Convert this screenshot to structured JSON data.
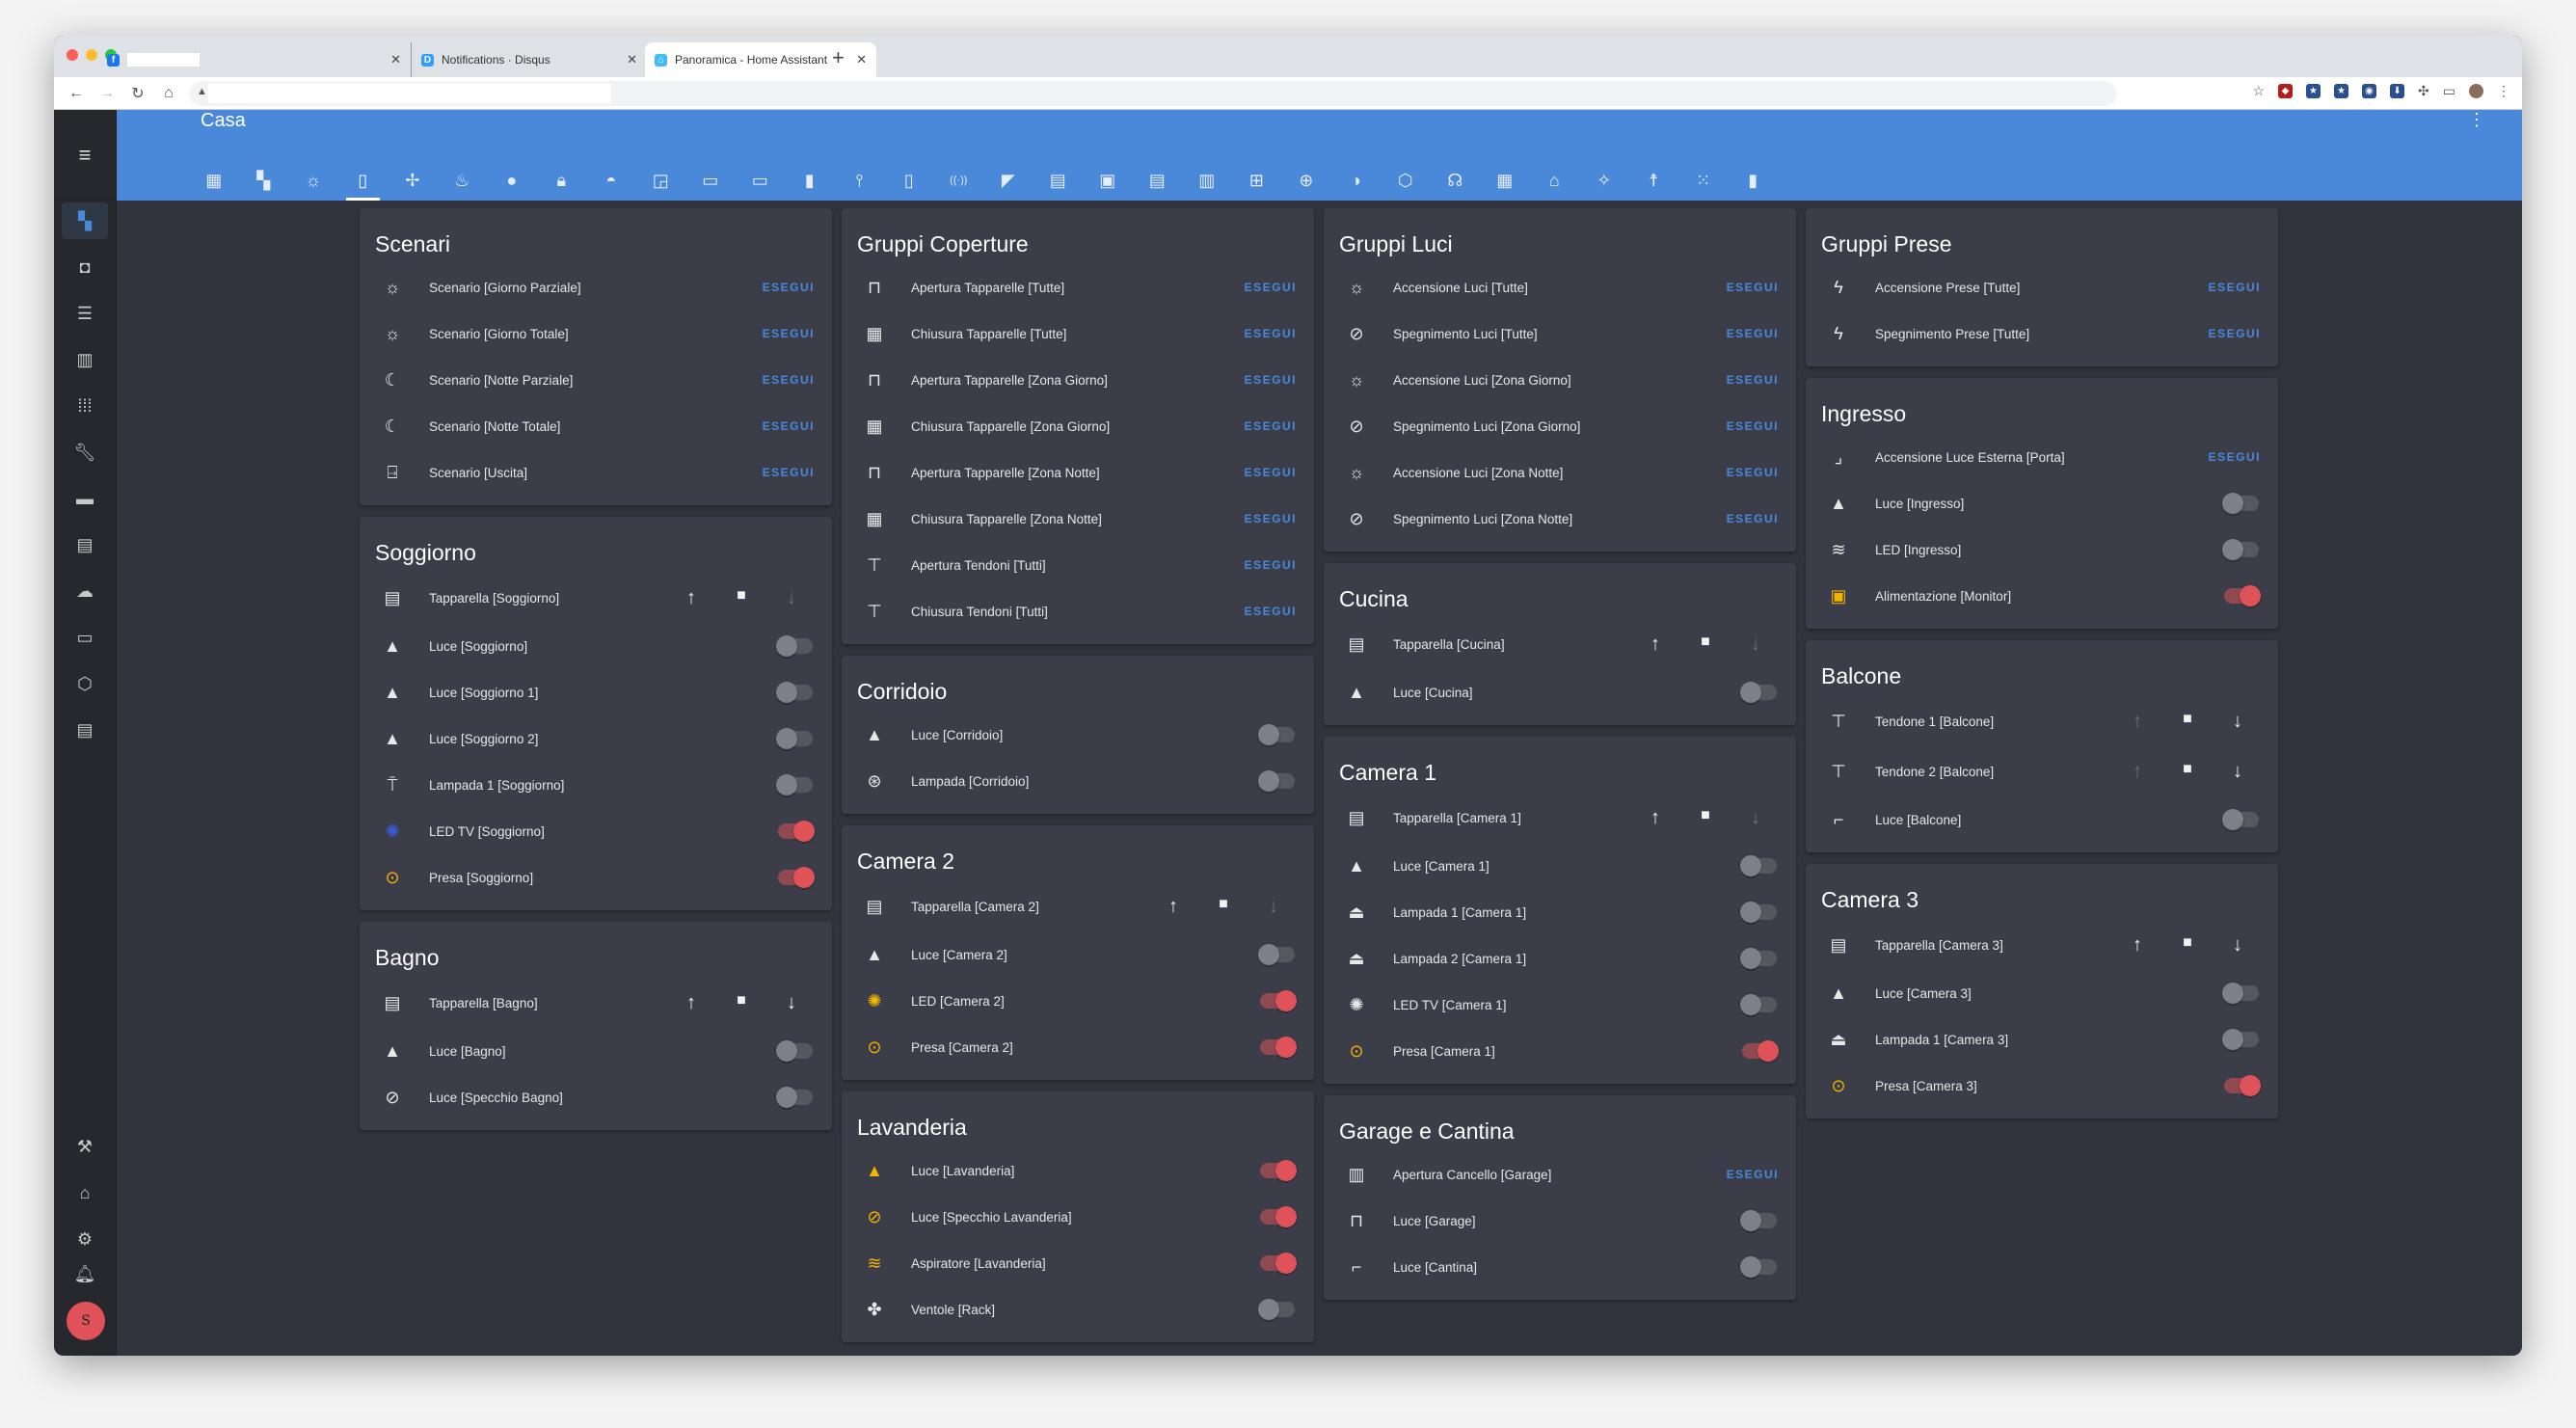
{
  "browser": {
    "tabs": [
      {
        "title": "",
        "favicon": "facebook-icon"
      },
      {
        "title": "Notifications · Disqus",
        "favicon": "disqus-icon"
      },
      {
        "title": "Panoramica - Home Assistant",
        "favicon": "home-assistant-icon",
        "active": true
      }
    ]
  },
  "app": {
    "title": "Casa",
    "view_tabs": [
      "floor-plan",
      "view-dashboard",
      "lightbulb",
      "door",
      "fan-ac",
      "radiator",
      "water",
      "lock",
      "gamepad",
      "cast",
      "airplay",
      "monitor",
      "speaker",
      "remote",
      "remote-tv",
      "wifi-signal",
      "cctv",
      "calendar",
      "image",
      "newspaper",
      "tablet-dashboard",
      "sitemap",
      "web",
      "weather",
      "cube",
      "robot",
      "grid-panel",
      "home",
      "wand",
      "human",
      "dots-grid",
      "thermometer"
    ],
    "active_view_tab": 3,
    "sidebar": [
      "overview",
      "map",
      "logbook",
      "history",
      "apps",
      "tools",
      "store",
      "log",
      "cloud",
      "terminal",
      "network",
      "calendar"
    ],
    "sidebar_bottom": [
      "hammer",
      "home-assistant",
      "settings"
    ],
    "avatar_initial": "S"
  },
  "colors": {
    "accent": "#4a88da",
    "on": "#e0525a",
    "icon_on": "#f4b400"
  },
  "columns": [
    [
      {
        "title": "Scenari",
        "rows": [
          {
            "type": "button",
            "icon": "sun",
            "label": "Scenario [Giorno Parziale]",
            "action": "ESEGUI"
          },
          {
            "type": "button",
            "icon": "sun",
            "label": "Scenario [Giorno Totale]",
            "action": "ESEGUI"
          },
          {
            "type": "button",
            "icon": "moon",
            "label": "Scenario [Notte Parziale]",
            "action": "ESEGUI"
          },
          {
            "type": "button",
            "icon": "moon",
            "label": "Scenario [Notte Totale]",
            "action": "ESEGUI"
          },
          {
            "type": "button",
            "icon": "exit",
            "label": "Scenario [Uscita]",
            "action": "ESEGUI"
          }
        ]
      },
      {
        "title": "Soggiorno",
        "rows": [
          {
            "type": "cover",
            "icon": "blinds",
            "label": "Tapparella [Soggiorno]",
            "up": true,
            "down": false
          },
          {
            "type": "toggle",
            "icon": "ceiling-light",
            "label": "Luce [Soggiorno]",
            "on": false
          },
          {
            "type": "toggle",
            "icon": "ceiling-light",
            "label": "Luce [Soggiorno 1]",
            "on": false
          },
          {
            "type": "toggle",
            "icon": "ceiling-light",
            "label": "Luce [Soggiorno 2]",
            "on": false
          },
          {
            "type": "toggle",
            "icon": "floor-lamp",
            "label": "Lampada 1 [Soggiorno]",
            "on": false
          },
          {
            "type": "toggle",
            "icon": "led",
            "label": "LED TV [Soggiorno]",
            "on": true
          },
          {
            "type": "toggle",
            "icon": "power-socket",
            "label": "Presa [Soggiorno]",
            "on": true
          }
        ]
      },
      {
        "title": "Bagno",
        "rows": [
          {
            "type": "cover",
            "icon": "blinds",
            "label": "Tapparella [Bagno]",
            "up": true,
            "down": true
          },
          {
            "type": "toggle",
            "icon": "ceiling-light",
            "label": "Luce [Bagno]",
            "on": false
          },
          {
            "type": "toggle",
            "icon": "mirror",
            "label": "Luce [Specchio Bagno]",
            "on": false
          }
        ]
      }
    ],
    [
      {
        "title": "Gruppi Coperture",
        "rows": [
          {
            "type": "button",
            "icon": "window-shutter-open",
            "label": "Apertura Tapparelle [Tutte]",
            "action": "ESEGUI"
          },
          {
            "type": "button",
            "icon": "window-shutter",
            "label": "Chiusura Tapparelle [Tutte]",
            "action": "ESEGUI"
          },
          {
            "type": "button",
            "icon": "window-shutter-open",
            "label": "Apertura Tapparelle [Zona Giorno]",
            "action": "ESEGUI"
          },
          {
            "type": "button",
            "icon": "window-shutter",
            "label": "Chiusura Tapparelle [Zona Giorno]",
            "action": "ESEGUI"
          },
          {
            "type": "button",
            "icon": "window-shutter-open",
            "label": "Apertura Tapparelle [Zona Notte]",
            "action": "ESEGUI"
          },
          {
            "type": "button",
            "icon": "window-shutter",
            "label": "Chiusura Tapparelle [Zona Notte]",
            "action": "ESEGUI"
          },
          {
            "type": "button",
            "icon": "awning",
            "label": "Apertura Tendoni [Tutti]",
            "action": "ESEGUI"
          },
          {
            "type": "button",
            "icon": "awning",
            "label": "Chiusura Tendoni [Tutti]",
            "action": "ESEGUI"
          }
        ]
      },
      {
        "title": "Corridoio",
        "rows": [
          {
            "type": "toggle",
            "icon": "ceiling-light",
            "label": "Luce [Corridoio]",
            "on": false
          },
          {
            "type": "toggle",
            "icon": "lamp",
            "label": "Lampada [Corridoio]",
            "on": false
          }
        ]
      },
      {
        "title": "Camera 2",
        "rows": [
          {
            "type": "cover",
            "icon": "blinds",
            "label": "Tapparella [Camera 2]",
            "up": true,
            "down": false
          },
          {
            "type": "toggle",
            "icon": "ceiling-light",
            "label": "Luce [Camera 2]",
            "on": false
          },
          {
            "type": "toggle",
            "icon": "led",
            "label": "LED [Camera 2]",
            "on": true
          },
          {
            "type": "toggle",
            "icon": "power-socket",
            "label": "Presa [Camera 2]",
            "on": true
          }
        ]
      },
      {
        "title": "Lavanderia",
        "rows": [
          {
            "type": "toggle",
            "icon": "ceiling-light",
            "label": "Luce [Lavanderia]",
            "on": true
          },
          {
            "type": "toggle",
            "icon": "mirror",
            "label": "Luce [Specchio Lavanderia]",
            "on": true
          },
          {
            "type": "toggle",
            "icon": "air-filter",
            "label": "Aspiratore [Lavanderia]",
            "on": true
          },
          {
            "type": "toggle",
            "icon": "fan",
            "label": "Ventole [Rack]",
            "on": false
          }
        ]
      }
    ],
    [
      {
        "title": "Gruppi Luci",
        "rows": [
          {
            "type": "button",
            "icon": "lightbulb-on",
            "label": "Accensione Luci [Tutte]",
            "action": "ESEGUI"
          },
          {
            "type": "button",
            "icon": "lightbulb-off",
            "label": "Spegnimento Luci [Tutte]",
            "action": "ESEGUI"
          },
          {
            "type": "button",
            "icon": "lightbulb-on",
            "label": "Accensione Luci [Zona Giorno]",
            "action": "ESEGUI"
          },
          {
            "type": "button",
            "icon": "lightbulb-off",
            "label": "Spegnimento Luci [Zona Giorno]",
            "action": "ESEGUI"
          },
          {
            "type": "button",
            "icon": "lightbulb-on",
            "label": "Accensione Luci [Zona Notte]",
            "action": "ESEGUI"
          },
          {
            "type": "button",
            "icon": "lightbulb-off",
            "label": "Spegnimento Luci [Zona Notte]",
            "action": "ESEGUI"
          }
        ]
      },
      {
        "title": "Cucina",
        "rows": [
          {
            "type": "cover",
            "icon": "blinds",
            "label": "Tapparella [Cucina]",
            "up": true,
            "down": false
          },
          {
            "type": "toggle",
            "icon": "ceiling-light",
            "label": "Luce [Cucina]",
            "on": false
          }
        ]
      },
      {
        "title": "Camera 1",
        "rows": [
          {
            "type": "cover",
            "icon": "blinds",
            "label": "Tapparella [Camera 1]",
            "up": true,
            "down": false
          },
          {
            "type": "toggle",
            "icon": "ceiling-light",
            "label": "Luce [Camera 1]",
            "on": false
          },
          {
            "type": "toggle",
            "icon": "desk-lamp",
            "label": "Lampada 1 [Camera 1]",
            "on": false
          },
          {
            "type": "toggle",
            "icon": "desk-lamp",
            "label": "Lampada 2 [Camera 1]",
            "on": false
          },
          {
            "type": "toggle",
            "icon": "led",
            "label": "LED TV [Camera 1]",
            "on": false
          },
          {
            "type": "toggle",
            "icon": "power-socket",
            "label": "Presa [Camera 1]",
            "on": true
          }
        ]
      },
      {
        "title": "Garage e Cantina",
        "rows": [
          {
            "type": "button",
            "icon": "gate",
            "label": "Apertura Cancello [Garage]",
            "action": "ESEGUI"
          },
          {
            "type": "toggle",
            "icon": "light-garage",
            "label": "Luce [Garage]",
            "on": false
          },
          {
            "type": "toggle",
            "icon": "wall-light",
            "label": "Luce [Cantina]",
            "on": false
          }
        ]
      }
    ],
    [
      {
        "title": "Gruppi Prese",
        "rows": [
          {
            "type": "button",
            "icon": "flash",
            "label": "Accensione Prese [Tutte]",
            "action": "ESEGUI"
          },
          {
            "type": "button",
            "icon": "flash-off",
            "label": "Spegnimento Prese [Tutte]",
            "action": "ESEGUI"
          }
        ]
      },
      {
        "title": "Ingresso",
        "rows": [
          {
            "type": "button",
            "icon": "stairs",
            "label": "Accensione Luce Esterna [Porta]",
            "action": "ESEGUI"
          },
          {
            "type": "toggle",
            "icon": "ceiling-light",
            "label": "Luce [Ingresso]",
            "on": false
          },
          {
            "type": "toggle",
            "icon": "led-strip",
            "label": "LED [Ingresso]",
            "on": false
          },
          {
            "type": "toggle",
            "icon": "monitor-dashboard",
            "label": "Alimentazione [Monitor]",
            "on": true
          }
        ]
      },
      {
        "title": "Balcone",
        "rows": [
          {
            "type": "cover",
            "icon": "awning",
            "label": "Tendone 1 [Balcone]",
            "up": false,
            "down": true
          },
          {
            "type": "cover",
            "icon": "awning",
            "label": "Tendone 2 [Balcone]",
            "up": false,
            "down": true
          },
          {
            "type": "toggle",
            "icon": "wall-light",
            "label": "Luce [Balcone]",
            "on": false
          }
        ]
      },
      {
        "title": "Camera 3",
        "rows": [
          {
            "type": "cover",
            "icon": "blinds",
            "label": "Tapparella [Camera 3]",
            "up": true,
            "down": true
          },
          {
            "type": "toggle",
            "icon": "ceiling-light",
            "label": "Luce [Camera 3]",
            "on": false
          },
          {
            "type": "toggle",
            "icon": "desk-lamp",
            "label": "Lampada 1 [Camera 3]",
            "on": false
          },
          {
            "type": "toggle",
            "icon": "power-socket",
            "label": "Presa [Camera 3]",
            "on": true
          }
        ]
      }
    ]
  ]
}
